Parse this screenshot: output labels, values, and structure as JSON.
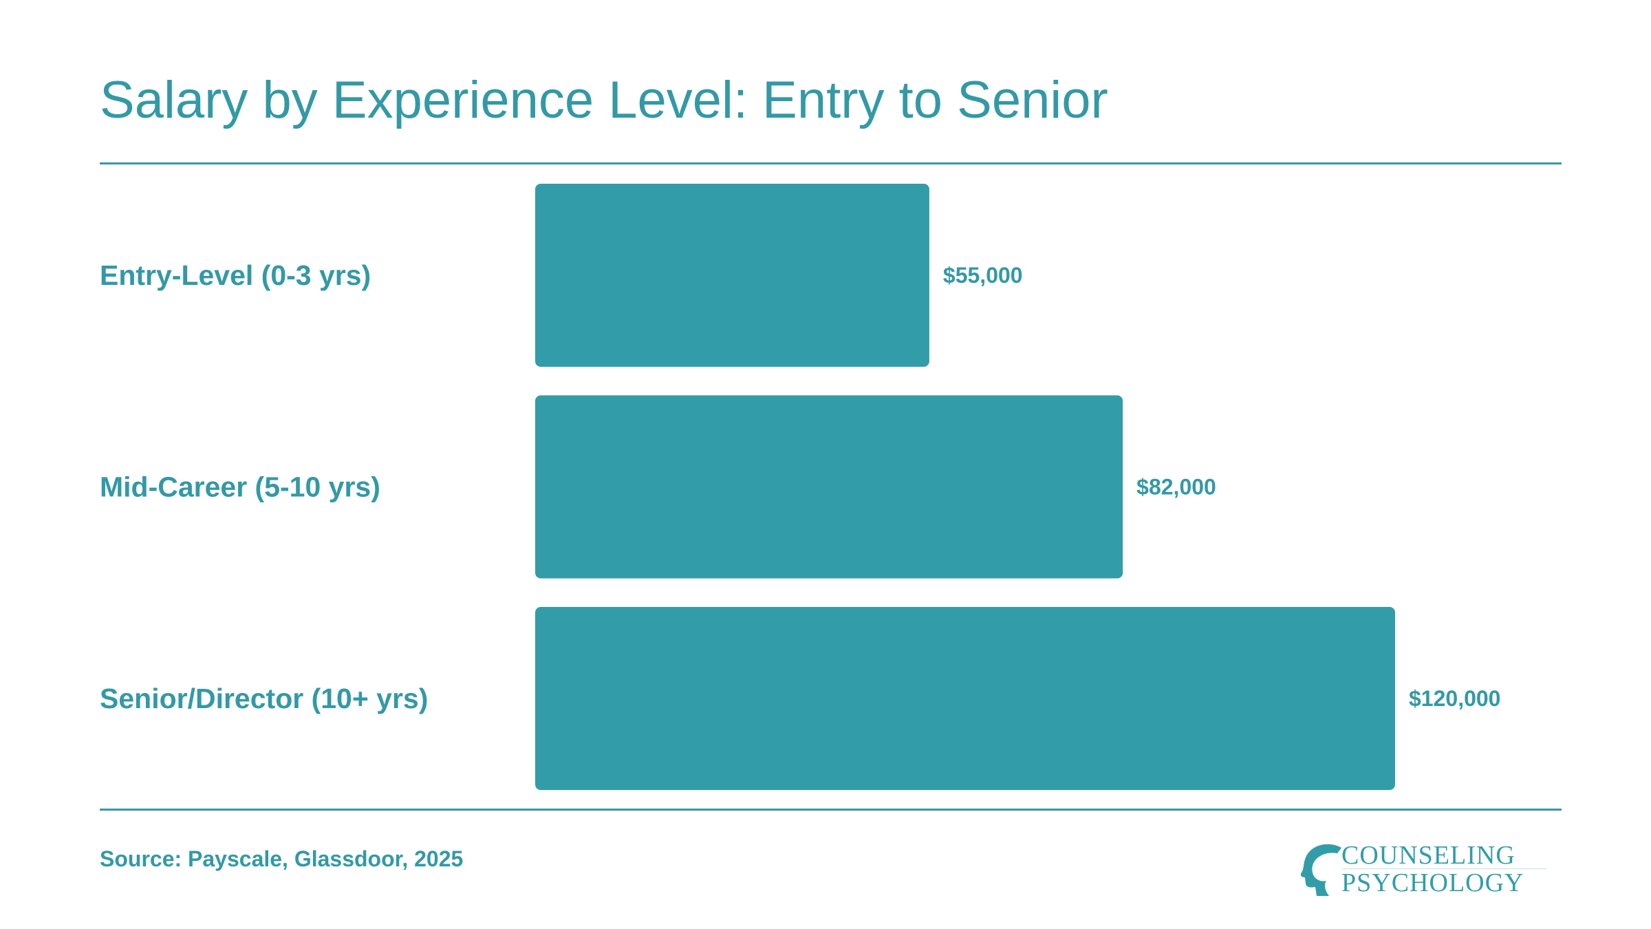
{
  "colors": {
    "accent": "#329da9",
    "text": "#3399a6",
    "rule": "#3a97a4",
    "background": "#ffffff"
  },
  "source": "Source: Payscale, Glassdoor, 2025",
  "logo": {
    "line1": "COUNSELING",
    "line2": "PSYCHOLOGY",
    "icon": "head-silhouette-icon"
  },
  "chart_data": {
    "type": "bar",
    "orientation": "horizontal",
    "title": "Salary by Experience Level: Entry to Senior",
    "categories": [
      "Entry-Level (0-3 yrs)",
      "Mid-Career (5-10 yrs)",
      "Senior/Director (10+ yrs)"
    ],
    "values": [
      55000,
      82000,
      120000
    ],
    "value_labels": [
      "$55,000",
      "$82,000",
      "$120,000"
    ],
    "xlim": [
      0,
      120000
    ],
    "grid": false,
    "legend": "none"
  }
}
